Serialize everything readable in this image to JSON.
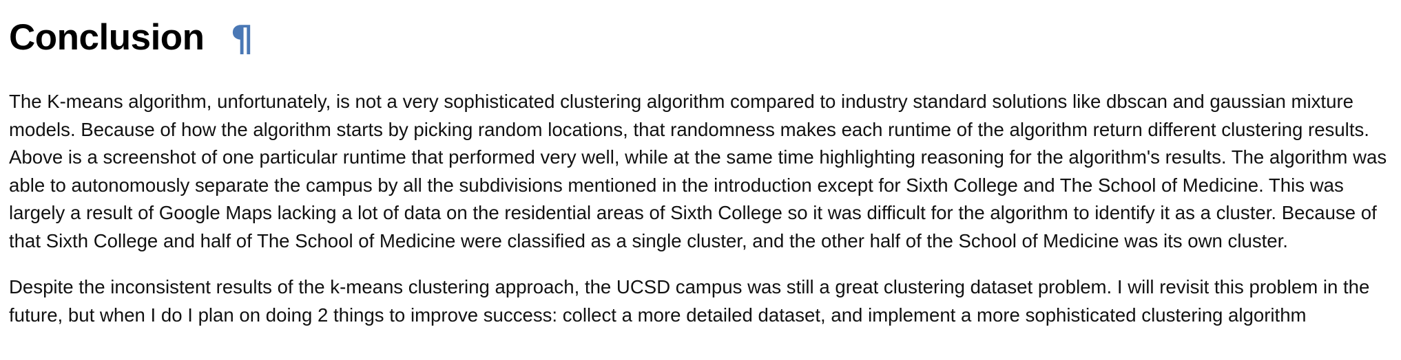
{
  "section": {
    "heading": "Conclusion",
    "anchor_symbol": "¶"
  },
  "paragraphs": [
    "The K-means algorithm, unfortunately, is not a very sophisticated clustering algorithm compared to industry standard solutions like dbscan and gaussian mixture models. Because of how the algorithm starts by picking random locations, that randomness makes each runtime of the algorithm return different clustering results. Above is a screenshot of one particular runtime that performed very well, while at the same time highlighting reasoning for the algorithm's results. The algorithm was able to autonomously separate the campus by all the subdivisions mentioned in the introduction except for Sixth College and The School of Medicine. This was largely a result of Google Maps lacking a lot of data on the residential areas of Sixth College so it was difficult for the algorithm to identify it as a cluster. Because of that Sixth College and half of The School of Medicine were classified as a single cluster, and the other half of the School of Medicine was its own cluster.",
    "Despite the inconsistent results of the k-means clustering approach, the UCSD campus was still a great clustering dataset problem. I will revisit this problem in the future, but when I do I plan on doing 2 things to improve success: collect a more detailed dataset, and implement a more sophisticated clustering algorithm"
  ],
  "colors": {
    "heading": "#000000",
    "anchor": "#4a78b5",
    "body_text": "#111111",
    "background": "#ffffff"
  }
}
